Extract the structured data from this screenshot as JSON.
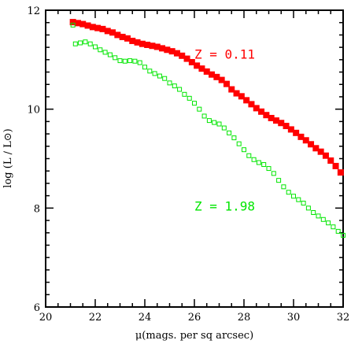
{
  "chart_data": {
    "type": "scatter",
    "xlabel": "μ(mags. per sq arcsec)",
    "ylabel": "log (L / L⊙)",
    "xlim": [
      20,
      32
    ],
    "ylim": [
      6,
      12
    ],
    "x_ticks": [
      20,
      22,
      24,
      26,
      28,
      30,
      32
    ],
    "y_ticks": [
      6,
      8,
      10,
      12
    ],
    "grid": false,
    "series": [
      {
        "name": "Z = 0.11",
        "color": "#ff0000",
        "marker": "filled-square",
        "points": [
          [
            21.1,
            11.76
          ],
          [
            21.3,
            11.74
          ],
          [
            21.5,
            11.72
          ],
          [
            21.7,
            11.69
          ],
          [
            21.9,
            11.66
          ],
          [
            22.1,
            11.64
          ],
          [
            22.3,
            11.62
          ],
          [
            22.5,
            11.58
          ],
          [
            22.7,
            11.55
          ],
          [
            22.9,
            11.5
          ],
          [
            23.1,
            11.46
          ],
          [
            23.3,
            11.43
          ],
          [
            23.5,
            11.38
          ],
          [
            23.7,
            11.35
          ],
          [
            23.9,
            11.32
          ],
          [
            24.1,
            11.3
          ],
          [
            24.3,
            11.28
          ],
          [
            24.5,
            11.26
          ],
          [
            24.7,
            11.23
          ],
          [
            24.9,
            11.2
          ],
          [
            25.1,
            11.17
          ],
          [
            25.3,
            11.13
          ],
          [
            25.5,
            11.08
          ],
          [
            25.7,
            11.02
          ],
          [
            25.9,
            10.95
          ],
          [
            26.1,
            10.88
          ],
          [
            26.3,
            10.82
          ],
          [
            26.5,
            10.76
          ],
          [
            26.7,
            10.7
          ],
          [
            26.9,
            10.65
          ],
          [
            27.1,
            10.59
          ],
          [
            27.3,
            10.51
          ],
          [
            27.5,
            10.4
          ],
          [
            27.7,
            10.32
          ],
          [
            27.9,
            10.26
          ],
          [
            28.1,
            10.18
          ],
          [
            28.3,
            10.1
          ],
          [
            28.5,
            10.02
          ],
          [
            28.7,
            9.95
          ],
          [
            28.9,
            9.88
          ],
          [
            29.1,
            9.82
          ],
          [
            29.3,
            9.77
          ],
          [
            29.5,
            9.72
          ],
          [
            29.7,
            9.66
          ],
          [
            29.9,
            9.59
          ],
          [
            30.1,
            9.52
          ],
          [
            30.3,
            9.44
          ],
          [
            30.5,
            9.37
          ],
          [
            30.7,
            9.29
          ],
          [
            30.9,
            9.21
          ],
          [
            31.1,
            9.14
          ],
          [
            31.3,
            9.06
          ],
          [
            31.5,
            8.96
          ],
          [
            31.7,
            8.85
          ],
          [
            31.9,
            8.72
          ]
        ]
      },
      {
        "name": "Z = 1.98",
        "color": "#00e600",
        "marker": "open-square",
        "points": [
          [
            21.1,
            11.7
          ],
          [
            21.2,
            11.32
          ],
          [
            21.4,
            11.34
          ],
          [
            21.6,
            11.36
          ],
          [
            21.8,
            11.32
          ],
          [
            22.0,
            11.26
          ],
          [
            22.2,
            11.2
          ],
          [
            22.4,
            11.15
          ],
          [
            22.6,
            11.1
          ],
          [
            22.8,
            11.04
          ],
          [
            23.0,
            10.98
          ],
          [
            23.2,
            10.97
          ],
          [
            23.4,
            10.98
          ],
          [
            23.6,
            10.97
          ],
          [
            23.8,
            10.94
          ],
          [
            24.0,
            10.85
          ],
          [
            24.2,
            10.77
          ],
          [
            24.4,
            10.72
          ],
          [
            24.6,
            10.67
          ],
          [
            24.8,
            10.62
          ],
          [
            25.0,
            10.53
          ],
          [
            25.2,
            10.47
          ],
          [
            25.4,
            10.4
          ],
          [
            25.6,
            10.3
          ],
          [
            25.8,
            10.22
          ],
          [
            26.0,
            10.12
          ],
          [
            26.2,
            10.0
          ],
          [
            26.4,
            9.86
          ],
          [
            26.6,
            9.77
          ],
          [
            26.8,
            9.73
          ],
          [
            27.0,
            9.7
          ],
          [
            27.2,
            9.62
          ],
          [
            27.4,
            9.52
          ],
          [
            27.6,
            9.42
          ],
          [
            27.8,
            9.3
          ],
          [
            28.0,
            9.18
          ],
          [
            28.2,
            9.06
          ],
          [
            28.4,
            8.98
          ],
          [
            28.6,
            8.92
          ],
          [
            28.8,
            8.88
          ],
          [
            29.0,
            8.8
          ],
          [
            29.2,
            8.7
          ],
          [
            29.4,
            8.56
          ],
          [
            29.6,
            8.43
          ],
          [
            29.8,
            8.32
          ],
          [
            30.0,
            8.24
          ],
          [
            30.2,
            8.17
          ],
          [
            30.4,
            8.1
          ],
          [
            30.6,
            8.0
          ],
          [
            30.8,
            7.91
          ],
          [
            31.0,
            7.84
          ],
          [
            31.2,
            7.77
          ],
          [
            31.4,
            7.7
          ],
          [
            31.6,
            7.62
          ],
          [
            31.8,
            7.53
          ],
          [
            32.0,
            7.45
          ]
        ]
      }
    ],
    "annotations": [
      {
        "text": "Z = 0.11",
        "x": 26.0,
        "y": 11.02,
        "color": "#ff0000"
      },
      {
        "text": "Z = 1.98",
        "x": 26.0,
        "y": 7.95,
        "color": "#00e600"
      }
    ]
  }
}
